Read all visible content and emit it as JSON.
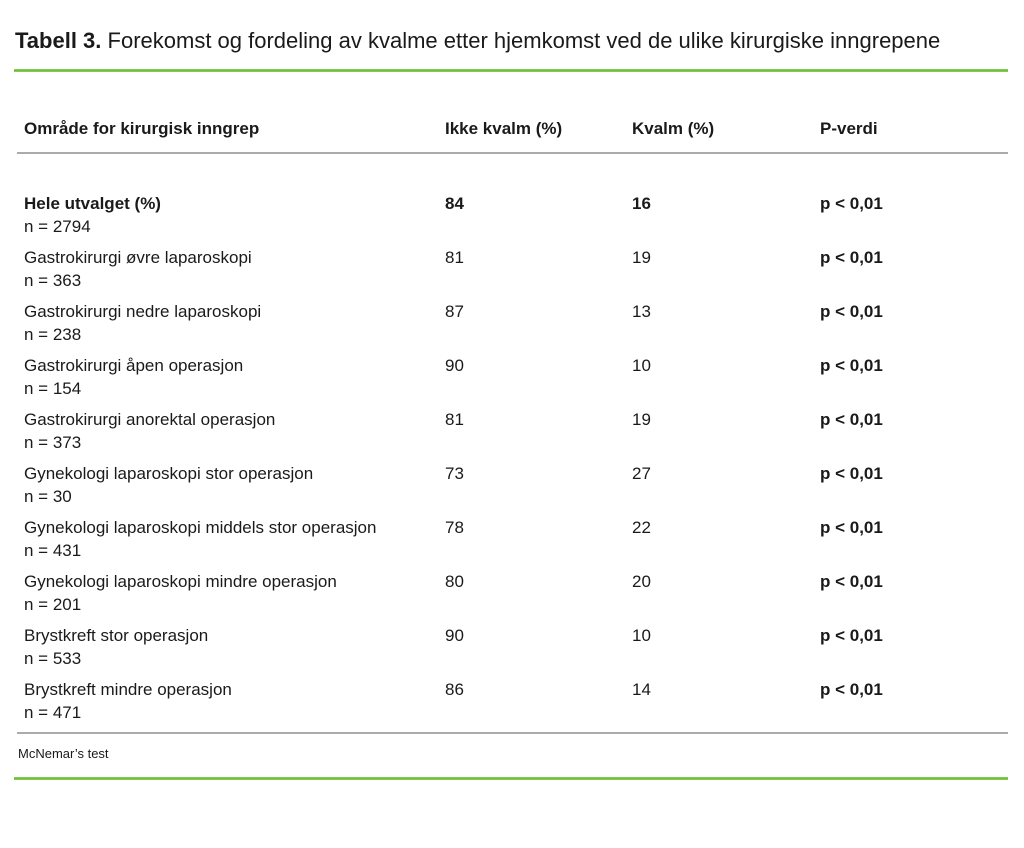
{
  "page": {
    "title_label": "Tabell 3.",
    "title_text": " Forekomst og fordeling av kvalme etter hjemkomst ved de ulike kirurgiske inngrepene"
  },
  "table": {
    "columns": {
      "area": "Område for kirurgisk inngrep",
      "not_nauseous": "Ikke kvalm (%)",
      "nauseous": "Kvalm (%)",
      "p_value": "P-verdi"
    },
    "rows": [
      {
        "name": "Hele utvalget (%)",
        "n": "n = 2794",
        "not_nauseous": "84",
        "nauseous": "16",
        "p_value": "p < 0,01",
        "emphasis": true
      },
      {
        "name": "Gastrokirurgi øvre laparoskopi",
        "n": "n = 363",
        "not_nauseous": "81",
        "nauseous": "19",
        "p_value": "p < 0,01",
        "emphasis": false
      },
      {
        "name": "Gastrokirurgi nedre laparoskopi",
        "n": "n = 238",
        "not_nauseous": "87",
        "nauseous": "13",
        "p_value": "p < 0,01",
        "emphasis": false
      },
      {
        "name": "Gastrokirurgi åpen operasjon",
        "n": "n = 154",
        "not_nauseous": "90",
        "nauseous": "10",
        "p_value": "p < 0,01",
        "emphasis": false
      },
      {
        "name": "Gastrokirurgi anorektal operasjon",
        "n": "n = 373",
        "not_nauseous": "81",
        "nauseous": "19",
        "p_value": "p < 0,01",
        "emphasis": false
      },
      {
        "name": "Gynekologi laparoskopi stor operasjon",
        "n": "n = 30",
        "not_nauseous": "73",
        "nauseous": "27",
        "p_value": "p < 0,01",
        "emphasis": false
      },
      {
        "name": "Gynekologi laparoskopi middels stor operasjon",
        "n": "n = 431",
        "not_nauseous": "78",
        "nauseous": "22",
        "p_value": "p < 0,01",
        "emphasis": false
      },
      {
        "name": "Gynekologi laparoskopi mindre operasjon",
        "n": "n = 201",
        "not_nauseous": "80",
        "nauseous": "20",
        "p_value": "p < 0,01",
        "emphasis": false
      },
      {
        "name": "Brystkreft stor operasjon",
        "n": "n = 533",
        "not_nauseous": "90",
        "nauseous": "10",
        "p_value": "p < 0,01",
        "emphasis": false
      },
      {
        "name": "Brystkreft mindre operasjon",
        "n": "n = 471",
        "not_nauseous": "86",
        "nauseous": "14",
        "p_value": "p < 0,01",
        "emphasis": false
      }
    ],
    "footnote": "McNemar’s test"
  },
  "colors": {
    "accent_green": "#75c142",
    "rule_gray": "#ababab",
    "text": "#1a1a1a"
  }
}
